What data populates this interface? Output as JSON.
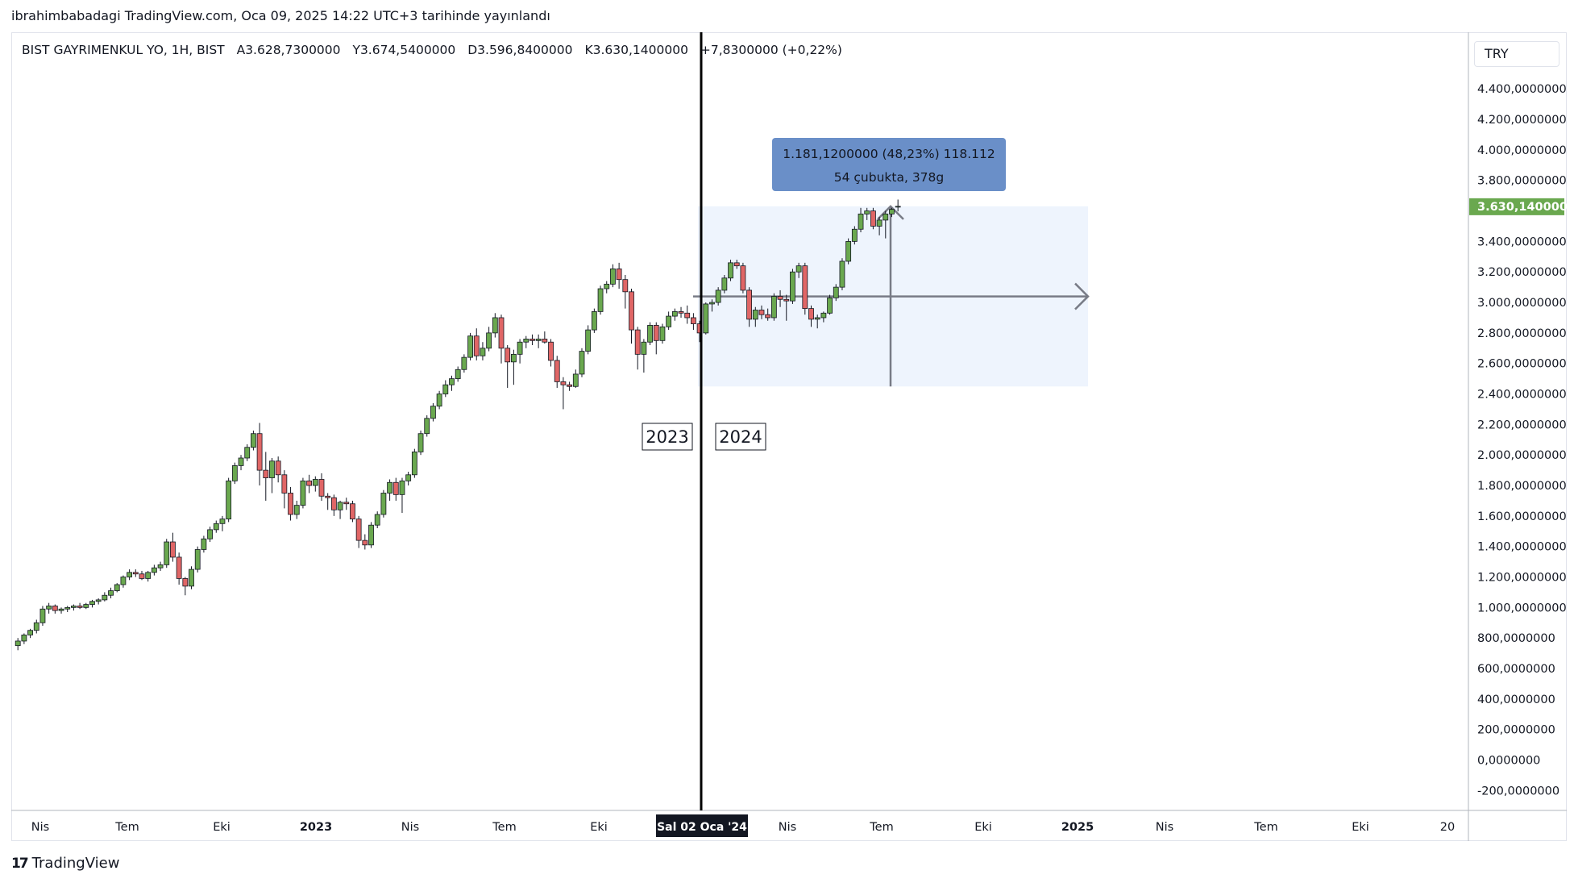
{
  "header": {
    "published": "ibrahimbabadagi TradingView.com, Oca 09, 2025 14:22 UTC+3 tarihinde yayınlandı"
  },
  "legend": {
    "symbol": "BIST GAYRIMENKUL YO, 1H, BIST",
    "open_label": "A",
    "open": "3.628,7300000",
    "high_label": "Y",
    "high": "3.674,5400000",
    "low_label": "D",
    "low": "3.596,8400000",
    "close_label": "K",
    "close": "3.630,1400000",
    "change": "+7,8300000 (+0,22%)"
  },
  "currency": "TRY",
  "price_tag": "3.630,1400000",
  "measure": {
    "line1": "1.181,1200000 (48,23%) 118.112",
    "line2": "54 çubukta, 378g",
    "from": 2449.0,
    "to": 3630.14
  },
  "annotations": {
    "left_year": "2023",
    "right_year": "2024"
  },
  "crosshair_label": "Sal 02 Oca '24",
  "footer": {
    "logo_text": "TradingView"
  },
  "colors": {
    "up": "#6aa84f",
    "down": "#e06666",
    "wick": "#131722",
    "price_tag": "#6aa84f",
    "measure_box": "#6a8fc8",
    "measure_area": "#eef4fd"
  },
  "chart_data": {
    "type": "candlestick",
    "timeframe": "weekly",
    "y_ticks": [
      "4.400,0000000",
      "4.200,0000000",
      "4.000,0000000",
      "3.800,0000000",
      "3.400,0000000",
      "3.200,0000000",
      "3.000,0000000",
      "2.800,0000000",
      "2.600,0000000",
      "2.400,0000000",
      "2.200,0000000",
      "2.000,0000000",
      "1.800,0000000",
      "1.600,0000000",
      "1.400,0000000",
      "1.200,0000000",
      "1.000,0000000",
      "800,0000000",
      "600,0000000",
      "400,0000000",
      "200,0000000",
      "0,0000000",
      "-200,0000000"
    ],
    "y_tick_values": [
      4400,
      4200,
      4000,
      3800,
      3400,
      3200,
      3000,
      2800,
      2600,
      2400,
      2200,
      2000,
      1800,
      1600,
      1400,
      1200,
      1000,
      800,
      600,
      400,
      200,
      0,
      -200
    ],
    "x_ticks": [
      {
        "label": "Nis",
        "t": 0
      },
      {
        "label": "Tem",
        "t": 12
      },
      {
        "label": "Eki",
        "t": 25
      },
      {
        "label": "2023",
        "t": 38
      },
      {
        "label": "Nis",
        "t": 51
      },
      {
        "label": "Tem",
        "t": 64
      },
      {
        "label": "Eki",
        "t": 77
      },
      {
        "label": "Nis",
        "t": 103
      },
      {
        "label": "Tem",
        "t": 116
      },
      {
        "label": "Eki",
        "t": 130
      },
      {
        "label": "2025",
        "t": 143
      },
      {
        "label": "Nis",
        "t": 155
      },
      {
        "label": "Tem",
        "t": 169
      },
      {
        "label": "Eki",
        "t": 182
      },
      {
        "label": "20",
        "t": 194
      }
    ],
    "crosshair_t": 90,
    "ylim": [
      -200,
      4400
    ],
    "candles": [
      [
        750,
        800,
        720,
        780
      ],
      [
        780,
        830,
        760,
        820
      ],
      [
        820,
        860,
        800,
        850
      ],
      [
        850,
        920,
        830,
        900
      ],
      [
        900,
        1010,
        880,
        990
      ],
      [
        990,
        1030,
        960,
        1010
      ],
      [
        1010,
        1020,
        960,
        980
      ],
      [
        980,
        1000,
        960,
        990
      ],
      [
        990,
        1010,
        970,
        1000
      ],
      [
        1000,
        1020,
        980,
        1010
      ],
      [
        1010,
        1030,
        990,
        1000
      ],
      [
        1000,
        1030,
        990,
        1020
      ],
      [
        1020,
        1050,
        1000,
        1040
      ],
      [
        1040,
        1060,
        1020,
        1050
      ],
      [
        1050,
        1100,
        1040,
        1080
      ],
      [
        1080,
        1130,
        1060,
        1110
      ],
      [
        1110,
        1160,
        1100,
        1150
      ],
      [
        1150,
        1210,
        1130,
        1200
      ],
      [
        1200,
        1250,
        1180,
        1230
      ],
      [
        1230,
        1250,
        1200,
        1220
      ],
      [
        1220,
        1240,
        1180,
        1190
      ],
      [
        1190,
        1240,
        1170,
        1230
      ],
      [
        1230,
        1280,
        1210,
        1260
      ],
      [
        1260,
        1300,
        1240,
        1280
      ],
      [
        1280,
        1450,
        1260,
        1430
      ],
      [
        1430,
        1490,
        1300,
        1330
      ],
      [
        1330,
        1360,
        1150,
        1190
      ],
      [
        1190,
        1200,
        1080,
        1140
      ],
      [
        1140,
        1270,
        1120,
        1250
      ],
      [
        1250,
        1400,
        1230,
        1380
      ],
      [
        1380,
        1470,
        1360,
        1450
      ],
      [
        1450,
        1530,
        1430,
        1510
      ],
      [
        1510,
        1570,
        1490,
        1550
      ],
      [
        1550,
        1600,
        1500,
        1580
      ],
      [
        1580,
        1850,
        1560,
        1830
      ],
      [
        1830,
        1950,
        1810,
        1930
      ],
      [
        1930,
        2000,
        1900,
        1980
      ],
      [
        1980,
        2070,
        1960,
        2050
      ],
      [
        2050,
        2160,
        2030,
        2140
      ],
      [
        2140,
        2210,
        1800,
        1900
      ],
      [
        1900,
        2020,
        1700,
        1850
      ],
      [
        1850,
        1980,
        1750,
        1960
      ],
      [
        1960,
        1990,
        1820,
        1870
      ],
      [
        1870,
        1900,
        1650,
        1750
      ],
      [
        1750,
        1790,
        1570,
        1610
      ],
      [
        1610,
        1700,
        1580,
        1670
      ],
      [
        1670,
        1850,
        1650,
        1830
      ],
      [
        1830,
        1870,
        1750,
        1800
      ],
      [
        1800,
        1860,
        1760,
        1840
      ],
      [
        1840,
        1880,
        1700,
        1730
      ],
      [
        1730,
        1750,
        1640,
        1720
      ],
      [
        1720,
        1740,
        1600,
        1640
      ],
      [
        1640,
        1700,
        1580,
        1690
      ],
      [
        1690,
        1720,
        1640,
        1680
      ],
      [
        1680,
        1700,
        1560,
        1580
      ],
      [
        1580,
        1600,
        1390,
        1440
      ],
      [
        1440,
        1480,
        1380,
        1410
      ],
      [
        1410,
        1560,
        1390,
        1540
      ],
      [
        1540,
        1630,
        1520,
        1610
      ],
      [
        1610,
        1770,
        1590,
        1750
      ],
      [
        1750,
        1840,
        1700,
        1820
      ],
      [
        1820,
        1850,
        1700,
        1740
      ],
      [
        1740,
        1850,
        1620,
        1830
      ],
      [
        1830,
        1890,
        1800,
        1870
      ],
      [
        1870,
        2040,
        1850,
        2020
      ],
      [
        2020,
        2160,
        2000,
        2140
      ],
      [
        2140,
        2260,
        2120,
        2240
      ],
      [
        2240,
        2340,
        2220,
        2320
      ],
      [
        2320,
        2420,
        2300,
        2400
      ],
      [
        2400,
        2490,
        2380,
        2460
      ],
      [
        2460,
        2520,
        2420,
        2500
      ],
      [
        2500,
        2580,
        2480,
        2560
      ],
      [
        2560,
        2660,
        2540,
        2640
      ],
      [
        2640,
        2800,
        2620,
        2780
      ],
      [
        2780,
        2830,
        2620,
        2650
      ],
      [
        2650,
        2740,
        2620,
        2700
      ],
      [
        2700,
        2840,
        2680,
        2800
      ],
      [
        2800,
        2930,
        2770,
        2900
      ],
      [
        2900,
        2920,
        2600,
        2700
      ],
      [
        2700,
        2720,
        2440,
        2610
      ],
      [
        2610,
        2690,
        2460,
        2660
      ],
      [
        2660,
        2760,
        2600,
        2740
      ],
      [
        2740,
        2780,
        2700,
        2760
      ],
      [
        2760,
        2790,
        2720,
        2750
      ],
      [
        2750,
        2790,
        2700,
        2760
      ],
      [
        2760,
        2810,
        2730,
        2740
      ],
      [
        2740,
        2760,
        2580,
        2620
      ],
      [
        2620,
        2650,
        2440,
        2480
      ],
      [
        2480,
        2510,
        2300,
        2460
      ],
      [
        2460,
        2480,
        2420,
        2449
      ],
      [
        2449,
        2560,
        2440,
        2530
      ],
      [
        2530,
        2700,
        2510,
        2680
      ],
      [
        2680,
        2850,
        2660,
        2820
      ],
      [
        2820,
        2960,
        2800,
        2940
      ],
      [
        2940,
        3110,
        2920,
        3090
      ],
      [
        3090,
        3140,
        3060,
        3120
      ],
      [
        3120,
        3250,
        3100,
        3220
      ],
      [
        3220,
        3260,
        3090,
        3150
      ],
      [
        3150,
        3180,
        2960,
        3070
      ],
      [
        3070,
        3090,
        2730,
        2820
      ],
      [
        2820,
        2840,
        2560,
        2660
      ],
      [
        2660,
        2760,
        2540,
        2740
      ],
      [
        2740,
        2870,
        2720,
        2850
      ],
      [
        2850,
        2870,
        2660,
        2750
      ],
      [
        2750,
        2860,
        2730,
        2840
      ],
      [
        2840,
        2940,
        2820,
        2910
      ],
      [
        2910,
        2960,
        2880,
        2940
      ],
      [
        2940,
        2970,
        2900,
        2930
      ],
      [
        2930,
        2980,
        2860,
        2900
      ],
      [
        2900,
        2930,
        2820,
        2860
      ],
      [
        2860,
        2880,
        2740,
        2800
      ],
      [
        2800,
        3000,
        2790,
        2990
      ],
      [
        2990,
        3020,
        2940,
        3000
      ],
      [
        3000,
        3100,
        2980,
        3080
      ],
      [
        3080,
        3180,
        3060,
        3160
      ],
      [
        3160,
        3280,
        3140,
        3260
      ],
      [
        3260,
        3280,
        3220,
        3240
      ],
      [
        3240,
        3260,
        3060,
        3080
      ],
      [
        3080,
        3100,
        2840,
        2890
      ],
      [
        2890,
        2970,
        2840,
        2950
      ],
      [
        2950,
        2980,
        2890,
        2920
      ],
      [
        2920,
        2960,
        2880,
        2900
      ],
      [
        2900,
        3060,
        2880,
        3040
      ],
      [
        3040,
        3080,
        2970,
        3020
      ],
      [
        3020,
        3050,
        2880,
        3010
      ],
      [
        3010,
        3220,
        2990,
        3200
      ],
      [
        3200,
        3260,
        3160,
        3240
      ],
      [
        3240,
        3260,
        2920,
        2960
      ],
      [
        2960,
        2980,
        2840,
        2890
      ],
      [
        2890,
        2920,
        2830,
        2900
      ],
      [
        2900,
        2940,
        2870,
        2930
      ],
      [
        2930,
        3050,
        2920,
        3030
      ],
      [
        3030,
        3120,
        3010,
        3100
      ],
      [
        3100,
        3290,
        3080,
        3270
      ],
      [
        3270,
        3420,
        3250,
        3400
      ],
      [
        3400,
        3500,
        3380,
        3480
      ],
      [
        3480,
        3620,
        3460,
        3580
      ],
      [
        3580,
        3620,
        3540,
        3600
      ],
      [
        3600,
        3620,
        3480,
        3500
      ],
      [
        3500,
        3560,
        3440,
        3540
      ],
      [
        3540,
        3600,
        3420,
        3580
      ],
      [
        3580,
        3620,
        3560,
        3610
      ],
      [
        3628.73,
        3674.54,
        3596.84,
        3630.14
      ]
    ]
  }
}
